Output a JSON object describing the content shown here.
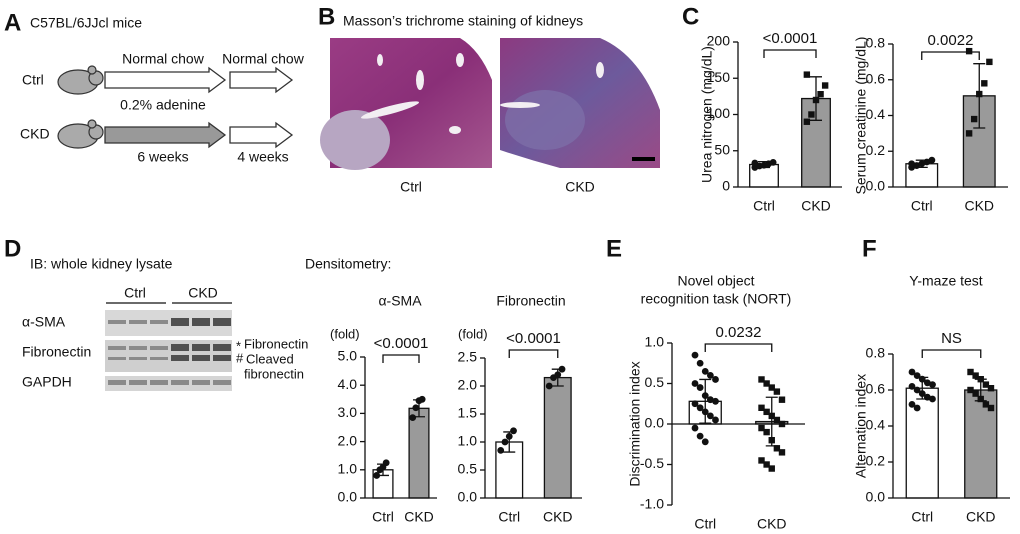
{
  "panel_a": {
    "label": "A",
    "title": "C57BL/6JJcl mice",
    "groups": [
      "Ctrl",
      "CKD"
    ],
    "top_labels": [
      "Normal chow",
      "Normal chow"
    ],
    "middle_label": "0.2% adenine",
    "bottom_labels": [
      "6 weeks",
      "4 weeks"
    ]
  },
  "panel_b": {
    "label": "B",
    "title": "Masson’s trichrome staining of kidneys",
    "images": [
      "Ctrl",
      "CKD"
    ]
  },
  "panel_c": {
    "label": "C"
  },
  "panel_d": {
    "label": "D",
    "title": "IB: whole kidney lysate",
    "groups": [
      "Ctrl",
      "CKD"
    ],
    "rows": [
      "α-SMA",
      "Fibronectin",
      "GAPDH"
    ],
    "band_markers": [
      "*",
      "#"
    ],
    "fibronectin_label": "Fibronectin",
    "cleaved_label": [
      "Cleaved",
      "fibronectin"
    ],
    "densitometry": "Densitometry:"
  },
  "panel_e": {
    "label": "E"
  },
  "panel_f": {
    "label": "F"
  },
  "chart_data": [
    {
      "type": "bar",
      "y_label": "Urea nitrogen (mg/dL)",
      "categories": [
        "Ctrl",
        "CKD"
      ],
      "values": [
        31,
        122
      ],
      "errors": [
        4,
        30
      ],
      "points": [
        [
          27,
          29,
          30,
          32,
          34,
          33
        ],
        [
          90,
          100,
          120,
          128,
          140,
          155
        ]
      ],
      "colors": [
        "#ffffff",
        "#9a9a9a"
      ],
      "markers": [
        "circle",
        "square"
      ],
      "annotation": "<0.0001",
      "ylim": [
        0,
        200
      ],
      "yticks": [
        0,
        50,
        100,
        150,
        200
      ]
    },
    {
      "type": "bar",
      "y_label": "Serum creatinine (mg/dL)",
      "categories": [
        "Ctrl",
        "CKD"
      ],
      "values": [
        0.13,
        0.51
      ],
      "errors": [
        0.02,
        0.18
      ],
      "points": [
        [
          0.11,
          0.12,
          0.13,
          0.14,
          0.15,
          0.13
        ],
        [
          0.3,
          0.38,
          0.52,
          0.58,
          0.7,
          0.76
        ]
      ],
      "colors": [
        "#ffffff",
        "#9a9a9a"
      ],
      "markers": [
        "circle",
        "square"
      ],
      "annotation": "0.0022",
      "ylim": [
        0,
        0.8
      ],
      "yticks": [
        {
          "value": 0,
          "label": "0.0"
        },
        0.2,
        0.4,
        0.6,
        0.8
      ]
    },
    {
      "type": "bar",
      "title": "α-SMA",
      "unit": "(fold)",
      "categories": [
        "Ctrl",
        "CKD"
      ],
      "values": [
        1.0,
        3.18
      ],
      "errors": [
        0.2,
        0.3
      ],
      "points": [
        [
          0.8,
          1.0,
          1.1,
          1.25
        ],
        [
          2.85,
          3.2,
          3.45,
          3.5
        ]
      ],
      "colors": [
        "#ffffff",
        "#9a9a9a"
      ],
      "markers": [
        "circle",
        "circle"
      ],
      "annotation": "<0.0001",
      "ylim": [
        0,
        5
      ],
      "yticks": [
        {
          "value": 0,
          "label": "0.0"
        },
        {
          "value": 1,
          "label": "1.0"
        },
        {
          "value": 2,
          "label": "2.0"
        },
        {
          "value": 3,
          "label": "3.0"
        },
        {
          "value": 4,
          "label": "4.0"
        },
        {
          "value": 5,
          "label": "5.0"
        }
      ]
    },
    {
      "type": "bar",
      "title": "Fibronectin",
      "unit": "(fold)",
      "categories": [
        "Ctrl",
        "CKD"
      ],
      "values": [
        1.0,
        2.15
      ],
      "errors": [
        0.18,
        0.15
      ],
      "points": [
        [
          0.85,
          1.0,
          1.1,
          1.2
        ],
        [
          2.0,
          2.15,
          2.2,
          2.3
        ]
      ],
      "colors": [
        "#ffffff",
        "#9a9a9a"
      ],
      "markers": [
        "circle",
        "circle"
      ],
      "annotation": "<0.0001",
      "ylim": [
        0,
        2.5
      ],
      "yticks": [
        {
          "value": 0,
          "label": "0.0"
        },
        0.5,
        {
          "value": 1,
          "label": "1.0"
        },
        1.5,
        {
          "value": 2,
          "label": "2.0"
        },
        2.5
      ]
    },
    {
      "type": "bar",
      "title": [
        "Novel object",
        "recognition task (NORT)"
      ],
      "y_label": "Discrimination index",
      "categories": [
        "Ctrl",
        "CKD"
      ],
      "values": [
        0.28,
        0.03
      ],
      "errors": [
        0.27,
        0.3
      ],
      "points": [
        [
          0.85,
          0.75,
          0.65,
          0.6,
          0.55,
          0.5,
          0.45,
          0.35,
          0.3,
          0.28,
          0.25,
          0.2,
          0.15,
          0.1,
          0.05,
          -0.05,
          -0.15,
          -0.22
        ],
        [
          0.55,
          0.5,
          0.45,
          0.4,
          0.3,
          0.2,
          0.15,
          0.1,
          0.05,
          0.0,
          -0.05,
          -0.1,
          -0.2,
          -0.3,
          -0.35,
          -0.45,
          -0.5,
          -0.55
        ]
      ],
      "colors": [
        "#ffffff",
        "#9a9a9a"
      ],
      "markers": [
        "circle",
        "square"
      ],
      "annotation": "0.0232",
      "ylim": [
        -1,
        1
      ],
      "yticks": [
        {
          "value": -1,
          "label": "-1.0"
        },
        -0.5,
        {
          "value": 0,
          "label": "0.0"
        },
        0.5,
        {
          "value": 1,
          "label": "1.0"
        }
      ]
    },
    {
      "type": "bar",
      "title": "Y-maze test",
      "y_label": "Alternation index",
      "categories": [
        "Ctrl",
        "CKD"
      ],
      "values": [
        0.61,
        0.6
      ],
      "errors": [
        0.06,
        0.06
      ],
      "points": [
        [
          0.7,
          0.68,
          0.66,
          0.64,
          0.63,
          0.62,
          0.6,
          0.58,
          0.56,
          0.55,
          0.52,
          0.5
        ],
        [
          0.7,
          0.68,
          0.66,
          0.63,
          0.61,
          0.6,
          0.58,
          0.55,
          0.52,
          0.5
        ]
      ],
      "colors": [
        "#ffffff",
        "#9a9a9a"
      ],
      "markers": [
        "circle",
        "square"
      ],
      "annotation": "NS",
      "ylim": [
        0,
        0.8
      ],
      "yticks": [
        {
          "value": 0,
          "label": "0.0"
        },
        0.2,
        0.4,
        0.6,
        0.8
      ]
    }
  ]
}
